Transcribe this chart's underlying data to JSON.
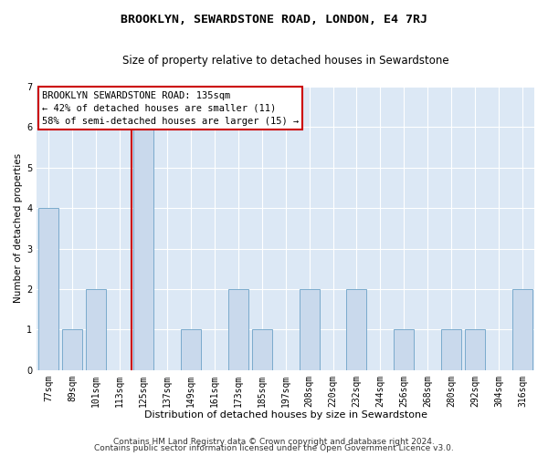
{
  "title": "BROOKLYN, SEWARDSTONE ROAD, LONDON, E4 7RJ",
  "subtitle": "Size of property relative to detached houses in Sewardstone",
  "xlabel": "Distribution of detached houses by size in Sewardstone",
  "ylabel": "Number of detached properties",
  "categories": [
    "77sqm",
    "89sqm",
    "101sqm",
    "113sqm",
    "125sqm",
    "137sqm",
    "149sqm",
    "161sqm",
    "173sqm",
    "185sqm",
    "197sqm",
    "208sqm",
    "220sqm",
    "232sqm",
    "244sqm",
    "256sqm",
    "268sqm",
    "280sqm",
    "292sqm",
    "304sqm",
    "316sqm"
  ],
  "values": [
    4,
    1,
    2,
    0,
    6,
    0,
    1,
    0,
    2,
    1,
    0,
    2,
    0,
    2,
    0,
    1,
    0,
    1,
    1,
    0,
    2
  ],
  "bar_color": "#c9d9ec",
  "bar_edge_color": "#7aaacc",
  "vline_x": 3.5,
  "vline_color": "#cc0000",
  "annotation_text": "BROOKLYN SEWARDSTONE ROAD: 135sqm\n← 42% of detached houses are smaller (11)\n58% of semi-detached houses are larger (15) →",
  "annotation_box_color": "white",
  "annotation_box_edge": "#cc0000",
  "ylim": [
    0,
    7
  ],
  "yticks": [
    0,
    1,
    2,
    3,
    4,
    5,
    6,
    7
  ],
  "bg_color": "#dce8f5",
  "footer_line1": "Contains HM Land Registry data © Crown copyright and database right 2024.",
  "footer_line2": "Contains public sector information licensed under the Open Government Licence v3.0.",
  "title_fontsize": 9.5,
  "subtitle_fontsize": 8.5,
  "xlabel_fontsize": 8,
  "ylabel_fontsize": 7.5,
  "tick_fontsize": 7,
  "annotation_fontsize": 7.5,
  "footer_fontsize": 6.5
}
